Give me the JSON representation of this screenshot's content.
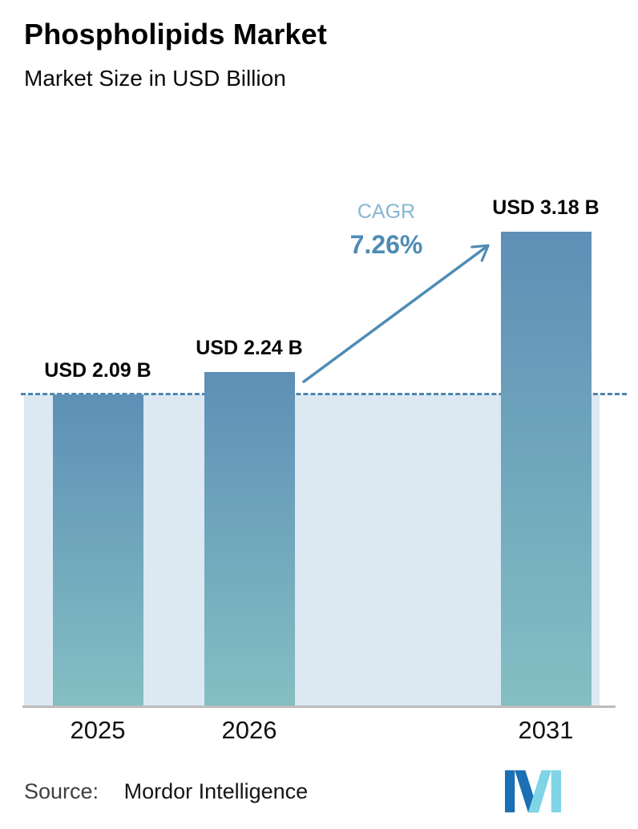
{
  "chart_data": {
    "type": "bar",
    "title": "Phospholipids Market",
    "subtitle": "Market Size in USD Billion",
    "categories": [
      "2025",
      "2026",
      "2031"
    ],
    "values": [
      2.09,
      2.24,
      3.18
    ],
    "bar_labels": [
      "USD 2.09 B",
      "USD 2.24 B",
      "USD 3.18 B"
    ],
    "ylabel": "Market Size (USD Billion)",
    "ylim": [
      0,
      3.5
    ],
    "baseline_value": 2.09,
    "grid": "off",
    "annotation": {
      "label": "CAGR",
      "value": "7.26%"
    },
    "colors": {
      "bar_top": "#5e8fb6",
      "bar_bottom": "#84bfc3",
      "band": "#dce8f2",
      "dashed_line": "#4c86ad",
      "accent": "#4e8cb5",
      "accent_light": "#86b6d2",
      "axis": "#bcbcbc"
    }
  },
  "footer": {
    "source_label": "Source:",
    "source_value": "Mordor Intelligence"
  }
}
